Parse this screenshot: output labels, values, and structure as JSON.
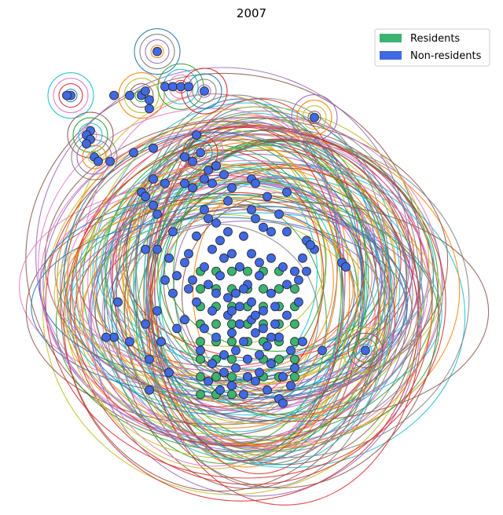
{
  "chart_data": {
    "type": "scatter",
    "title": "2007",
    "xlabel": "",
    "ylabel": "",
    "xlim": [
      0,
      1
    ],
    "ylim": [
      0,
      1
    ],
    "axes_visible": false,
    "grid": false,
    "legend_position": "top-right",
    "series": [
      {
        "name": "Residents",
        "color": "#3cb371",
        "points": [
          [
            0.37,
            0.49
          ],
          [
            0.41,
            0.49
          ],
          [
            0.45,
            0.49
          ],
          [
            0.49,
            0.49
          ],
          [
            0.53,
            0.49
          ],
          [
            0.57,
            0.49
          ],
          [
            0.61,
            0.49
          ],
          [
            0.37,
            0.45
          ],
          [
            0.41,
            0.45
          ],
          [
            0.45,
            0.45
          ],
          [
            0.49,
            0.45
          ],
          [
            0.53,
            0.45
          ],
          [
            0.57,
            0.45
          ],
          [
            0.61,
            0.45
          ],
          [
            0.37,
            0.41
          ],
          [
            0.41,
            0.41
          ],
          [
            0.45,
            0.41
          ],
          [
            0.49,
            0.41
          ],
          [
            0.53,
            0.41
          ],
          [
            0.57,
            0.41
          ],
          [
            0.61,
            0.41
          ],
          [
            0.37,
            0.37
          ],
          [
            0.41,
            0.37
          ],
          [
            0.45,
            0.37
          ],
          [
            0.49,
            0.37
          ],
          [
            0.53,
            0.37
          ],
          [
            0.57,
            0.37
          ],
          [
            0.61,
            0.37
          ],
          [
            0.37,
            0.33
          ],
          [
            0.41,
            0.33
          ],
          [
            0.45,
            0.33
          ],
          [
            0.49,
            0.33
          ],
          [
            0.53,
            0.33
          ],
          [
            0.57,
            0.33
          ],
          [
            0.61,
            0.33
          ],
          [
            0.37,
            0.29
          ],
          [
            0.41,
            0.29
          ],
          [
            0.45,
            0.29
          ],
          [
            0.49,
            0.29
          ],
          [
            0.53,
            0.29
          ],
          [
            0.57,
            0.29
          ],
          [
            0.61,
            0.29
          ],
          [
            0.37,
            0.25
          ],
          [
            0.41,
            0.25
          ],
          [
            0.45,
            0.25
          ],
          [
            0.49,
            0.25
          ],
          [
            0.53,
            0.25
          ],
          [
            0.57,
            0.25
          ],
          [
            0.61,
            0.25
          ],
          [
            0.37,
            0.21
          ],
          [
            0.41,
            0.21
          ],
          [
            0.45,
            0.21
          ]
        ]
      },
      {
        "name": "Non-residents",
        "color": "#4169e1",
        "points": [
          [
            0.26,
            0.99
          ],
          [
            0.15,
            0.89
          ],
          [
            0.19,
            0.89
          ],
          [
            0.22,
            0.89
          ],
          [
            0.23,
            0.9
          ],
          [
            0.24,
            0.88
          ],
          [
            0.24,
            0.86
          ],
          [
            0.28,
            0.91
          ],
          [
            0.3,
            0.91
          ],
          [
            0.32,
            0.91
          ],
          [
            0.34,
            0.91
          ],
          [
            0.38,
            0.9
          ],
          [
            0.04,
            0.89
          ],
          [
            0.03,
            0.89
          ],
          [
            0.66,
            0.84
          ],
          [
            0.09,
            0.81
          ],
          [
            0.08,
            0.8
          ],
          [
            0.09,
            0.79
          ],
          [
            0.08,
            0.78
          ],
          [
            0.36,
            0.8
          ],
          [
            0.25,
            0.77
          ],
          [
            0.2,
            0.76
          ],
          [
            0.1,
            0.75
          ],
          [
            0.14,
            0.74
          ],
          [
            0.11,
            0.74
          ],
          [
            0.37,
            0.76
          ],
          [
            0.33,
            0.75
          ],
          [
            0.35,
            0.74
          ],
          [
            0.39,
            0.72
          ],
          [
            0.41,
            0.73
          ],
          [
            0.43,
            0.71
          ],
          [
            0.38,
            0.7
          ],
          [
            0.33,
            0.69
          ],
          [
            0.35,
            0.68
          ],
          [
            0.4,
            0.69
          ],
          [
            0.25,
            0.7
          ],
          [
            0.28,
            0.69
          ],
          [
            0.22,
            0.67
          ],
          [
            0.23,
            0.66
          ],
          [
            0.45,
            0.68
          ],
          [
            0.5,
            0.7
          ],
          [
            0.51,
            0.69
          ],
          [
            0.54,
            0.66
          ],
          [
            0.59,
            0.67
          ],
          [
            0.44,
            0.65
          ],
          [
            0.38,
            0.63
          ],
          [
            0.5,
            0.63
          ],
          [
            0.25,
            0.64
          ],
          [
            0.26,
            0.62
          ],
          [
            0.39,
            0.61
          ],
          [
            0.41,
            0.6
          ],
          [
            0.51,
            0.61
          ],
          [
            0.57,
            0.62
          ],
          [
            0.44,
            0.58
          ],
          [
            0.53,
            0.59
          ],
          [
            0.55,
            0.58
          ],
          [
            0.59,
            0.58
          ],
          [
            0.64,
            0.56
          ],
          [
            0.66,
            0.54
          ],
          [
            0.65,
            0.55
          ],
          [
            0.26,
            0.54
          ],
          [
            0.23,
            0.54
          ],
          [
            0.29,
            0.52
          ],
          [
            0.33,
            0.51
          ],
          [
            0.4,
            0.54
          ],
          [
            0.43,
            0.52
          ],
          [
            0.45,
            0.53
          ],
          [
            0.47,
            0.5
          ],
          [
            0.5,
            0.53
          ],
          [
            0.52,
            0.51
          ],
          [
            0.55,
            0.52
          ],
          [
            0.58,
            0.5
          ],
          [
            0.61,
            0.49
          ],
          [
            0.35,
            0.47
          ],
          [
            0.39,
            0.46
          ],
          [
            0.42,
            0.48
          ],
          [
            0.46,
            0.44
          ],
          [
            0.49,
            0.46
          ],
          [
            0.52,
            0.48
          ],
          [
            0.55,
            0.44
          ],
          [
            0.59,
            0.46
          ],
          [
            0.62,
            0.47
          ],
          [
            0.36,
            0.42
          ],
          [
            0.4,
            0.4
          ],
          [
            0.44,
            0.39
          ],
          [
            0.47,
            0.41
          ],
          [
            0.5,
            0.38
          ],
          [
            0.53,
            0.4
          ],
          [
            0.56,
            0.37
          ],
          [
            0.59,
            0.39
          ],
          [
            0.62,
            0.42
          ],
          [
            0.33,
            0.38
          ],
          [
            0.38,
            0.36
          ],
          [
            0.41,
            0.34
          ],
          [
            0.45,
            0.35
          ],
          [
            0.48,
            0.33
          ],
          [
            0.51,
            0.35
          ],
          [
            0.54,
            0.32
          ],
          [
            0.57,
            0.34
          ],
          [
            0.6,
            0.31
          ],
          [
            0.63,
            0.33
          ],
          [
            0.37,
            0.31
          ],
          [
            0.4,
            0.28
          ],
          [
            0.43,
            0.3
          ],
          [
            0.46,
            0.27
          ],
          [
            0.49,
            0.29
          ],
          [
            0.52,
            0.26
          ],
          [
            0.55,
            0.28
          ],
          [
            0.58,
            0.25
          ],
          [
            0.61,
            0.27
          ],
          [
            0.39,
            0.24
          ],
          [
            0.42,
            0.22
          ],
          [
            0.45,
            0.23
          ],
          [
            0.48,
            0.21
          ],
          [
            0.51,
            0.24
          ],
          [
            0.54,
            0.22
          ],
          [
            0.57,
            0.2
          ],
          [
            0.6,
            0.23
          ],
          [
            0.3,
            0.44
          ],
          [
            0.26,
            0.4
          ],
          [
            0.23,
            0.37
          ],
          [
            0.27,
            0.33
          ],
          [
            0.24,
            0.29
          ],
          [
            0.29,
            0.26
          ],
          [
            0.16,
            0.42
          ],
          [
            0.15,
            0.34
          ],
          [
            0.13,
            0.34
          ],
          [
            0.19,
            0.33
          ],
          [
            0.24,
            0.22
          ],
          [
            0.73,
            0.51
          ],
          [
            0.74,
            0.5
          ],
          [
            0.68,
            0.31
          ],
          [
            0.79,
            0.31
          ],
          [
            0.58,
            0.19
          ],
          [
            0.64,
            0.49
          ],
          [
            0.63,
            0.52
          ],
          [
            0.31,
            0.48
          ],
          [
            0.34,
            0.45
          ],
          [
            0.28,
            0.47
          ],
          [
            0.31,
            0.36
          ],
          [
            0.44,
            0.43
          ],
          [
            0.47,
            0.37
          ],
          [
            0.5,
            0.42
          ],
          [
            0.53,
            0.36
          ],
          [
            0.56,
            0.41
          ],
          [
            0.43,
            0.26
          ],
          [
            0.46,
            0.31
          ],
          [
            0.49,
            0.25
          ],
          [
            0.52,
            0.3
          ],
          [
            0.55,
            0.34
          ],
          [
            0.41,
            0.44
          ],
          [
            0.48,
            0.45
          ],
          [
            0.45,
            0.4
          ],
          [
            0.51,
            0.39
          ],
          [
            0.48,
            0.57
          ],
          [
            0.42,
            0.56
          ],
          [
            0.36,
            0.57
          ],
          [
            0.3,
            0.58
          ],
          [
            0.34,
            0.53
          ],
          [
            0.38,
            0.5
          ]
        ]
      }
    ]
  }
}
